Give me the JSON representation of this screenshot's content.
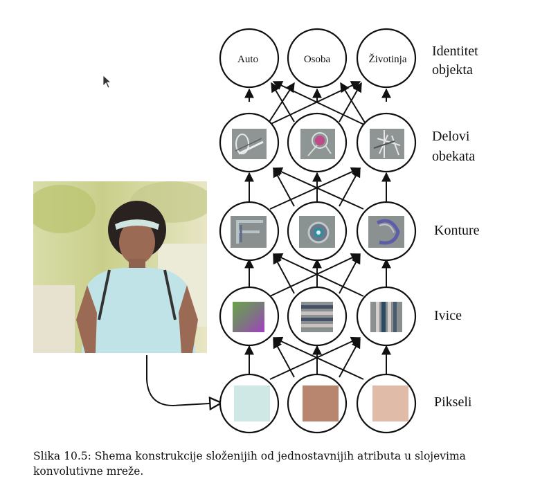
{
  "layers": [
    {
      "label_lines": [
        "Identitet",
        "objekta"
      ],
      "nodes": [
        "Auto",
        "Osoba",
        "Životinja"
      ]
    },
    {
      "label_lines": [
        "Delovi",
        "obekata"
      ],
      "nodes": [
        "",
        "",
        ""
      ]
    },
    {
      "label_lines": [
        "Konture"
      ],
      "nodes": [
        "",
        "",
        ""
      ]
    },
    {
      "label_lines": [
        "Ivice"
      ],
      "nodes": [
        "",
        "",
        ""
      ]
    },
    {
      "label_lines": [
        "Pikseli"
      ],
      "nodes": [
        "",
        "",
        ""
      ]
    }
  ],
  "pixel_colors": [
    "#cfe8e6",
    "#b8866f",
    "#dfbba8"
  ],
  "caption": "Slika 10.5: Shema konstrukcije složenijih od jednostavnijih atributa u slojevima konvolutivne mreže."
}
